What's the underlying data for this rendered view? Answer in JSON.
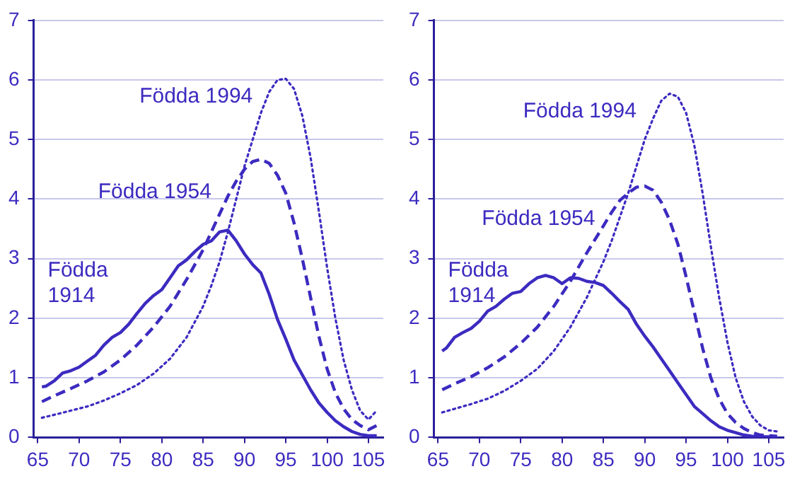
{
  "chart_data": [
    {
      "type": "line",
      "xlim": [
        64.5,
        106.8
      ],
      "xticks": [
        65,
        70,
        75,
        80,
        85,
        90,
        95,
        100,
        105
      ],
      "ylim": [
        0,
        7
      ],
      "yticks": [
        0,
        1,
        2,
        3,
        4,
        5,
        6,
        7
      ],
      "grid": "y",
      "legend": false,
      "marker": "none",
      "series": [
        {
          "name": "Födda 1914",
          "color": "#3c2bc0",
          "line_style": "solid",
          "x": [
            65.5,
            66,
            67,
            68,
            69,
            70,
            71,
            72,
            73,
            74,
            75,
            76,
            77,
            78,
            79,
            80,
            81,
            82,
            83,
            84,
            85,
            86,
            87,
            88,
            89,
            90,
            91,
            92,
            93,
            94,
            95,
            96,
            97,
            98,
            99,
            100,
            101,
            102,
            103,
            104,
            105,
            106
          ],
          "values": [
            0.85,
            0.86,
            0.95,
            1.08,
            1.12,
            1.18,
            1.28,
            1.38,
            1.55,
            1.68,
            1.76,
            1.9,
            2.08,
            2.25,
            2.38,
            2.48,
            2.68,
            2.88,
            2.98,
            3.12,
            3.24,
            3.3,
            3.45,
            3.48,
            3.3,
            3.08,
            2.9,
            2.76,
            2.4,
            1.98,
            1.65,
            1.3,
            1.05,
            0.8,
            0.58,
            0.42,
            0.28,
            0.18,
            0.1,
            0.05,
            0.03,
            0.03
          ]
        },
        {
          "name": "Födda 1954",
          "color": "#3c2bc0",
          "line_style": "dashed",
          "x": [
            65.5,
            67,
            69,
            71,
            73,
            75,
            77,
            79,
            81,
            83,
            85,
            87,
            88,
            89,
            90,
            91,
            92,
            93,
            94,
            95,
            96,
            97,
            98,
            99,
            100,
            101,
            102,
            103,
            104,
            105,
            106
          ],
          "values": [
            0.6,
            0.7,
            0.82,
            0.95,
            1.1,
            1.3,
            1.55,
            1.85,
            2.2,
            2.65,
            3.15,
            3.75,
            4.05,
            4.3,
            4.5,
            4.63,
            4.67,
            4.6,
            4.4,
            4.1,
            3.6,
            3.0,
            2.35,
            1.7,
            1.15,
            0.75,
            0.48,
            0.3,
            0.2,
            0.13,
            0.2
          ]
        },
        {
          "name": "Födda 1994",
          "color": "#3c2bc0",
          "line_style": "dotted",
          "x": [
            65.5,
            67,
            69,
            71,
            73,
            75,
            77,
            79,
            81,
            83,
            85,
            86,
            87,
            88,
            89,
            90,
            91,
            92,
            93,
            94,
            95,
            96,
            97,
            98,
            99,
            100,
            101,
            102,
            103,
            104,
            105,
            106
          ],
          "values": [
            0.33,
            0.38,
            0.45,
            0.52,
            0.62,
            0.74,
            0.88,
            1.07,
            1.32,
            1.68,
            2.2,
            2.55,
            2.95,
            3.45,
            4.0,
            4.55,
            5.0,
            5.45,
            5.8,
            6.0,
            6.02,
            5.85,
            5.4,
            4.7,
            3.8,
            2.85,
            2.0,
            1.3,
            0.8,
            0.45,
            0.3,
            0.45
          ]
        }
      ]
    },
    {
      "type": "line",
      "xlim": [
        64.5,
        106.8
      ],
      "xticks": [
        65,
        70,
        75,
        80,
        85,
        90,
        95,
        100,
        105
      ],
      "ylim": [
        0,
        7
      ],
      "yticks": [
        0,
        1,
        2,
        3,
        4,
        5,
        6,
        7
      ],
      "grid": "y",
      "legend": false,
      "marker": "none",
      "series": [
        {
          "name": "Födda 1914",
          "color": "#3c2bc0",
          "line_style": "solid",
          "x": [
            65.5,
            66,
            67,
            68,
            69,
            70,
            71,
            72,
            73,
            74,
            75,
            76,
            77,
            78,
            79,
            80,
            81,
            82,
            83,
            84,
            85,
            86,
            87,
            88,
            89,
            90,
            91,
            92,
            93,
            94,
            95,
            96,
            97,
            98,
            99,
            100,
            101,
            102,
            103,
            104,
            105,
            106
          ],
          "values": [
            1.45,
            1.5,
            1.68,
            1.76,
            1.83,
            1.95,
            2.12,
            2.2,
            2.32,
            2.42,
            2.45,
            2.58,
            2.68,
            2.72,
            2.68,
            2.58,
            2.68,
            2.67,
            2.62,
            2.6,
            2.55,
            2.42,
            2.28,
            2.15,
            1.9,
            1.7,
            1.52,
            1.32,
            1.12,
            0.92,
            0.72,
            0.52,
            0.4,
            0.28,
            0.18,
            0.12,
            0.08,
            0.04,
            0.02,
            0.01,
            0.01,
            0.01
          ]
        },
        {
          "name": "Födda 1954",
          "color": "#3c2bc0",
          "line_style": "dashed",
          "x": [
            65.5,
            67,
            69,
            71,
            73,
            75,
            77,
            79,
            81,
            83,
            85,
            86,
            87,
            88,
            89,
            90,
            91,
            92,
            93,
            94,
            95,
            96,
            97,
            98,
            99,
            100,
            101,
            102,
            103,
            104,
            105,
            106
          ],
          "values": [
            0.8,
            0.9,
            1.02,
            1.17,
            1.35,
            1.58,
            1.85,
            2.2,
            2.62,
            3.1,
            3.55,
            3.78,
            3.98,
            4.1,
            4.2,
            4.22,
            4.15,
            3.95,
            3.65,
            3.25,
            2.7,
            2.1,
            1.5,
            1.0,
            0.65,
            0.4,
            0.25,
            0.15,
            0.08,
            0.04,
            0.03,
            0.02
          ]
        },
        {
          "name": "Födda 1994",
          "color": "#3c2bc0",
          "line_style": "dotted",
          "x": [
            65.5,
            67,
            69,
            71,
            73,
            75,
            77,
            79,
            81,
            83,
            85,
            86,
            87,
            88,
            89,
            90,
            91,
            92,
            93,
            94,
            95,
            96,
            97,
            98,
            99,
            100,
            101,
            102,
            103,
            104,
            105,
            106
          ],
          "values": [
            0.42,
            0.48,
            0.56,
            0.65,
            0.78,
            0.95,
            1.15,
            1.45,
            1.85,
            2.35,
            2.95,
            3.3,
            3.7,
            4.1,
            4.55,
            5.0,
            5.35,
            5.65,
            5.77,
            5.72,
            5.45,
            4.9,
            4.1,
            3.2,
            2.35,
            1.6,
            1.0,
            0.6,
            0.35,
            0.2,
            0.12,
            0.1
          ]
        }
      ]
    }
  ]
}
